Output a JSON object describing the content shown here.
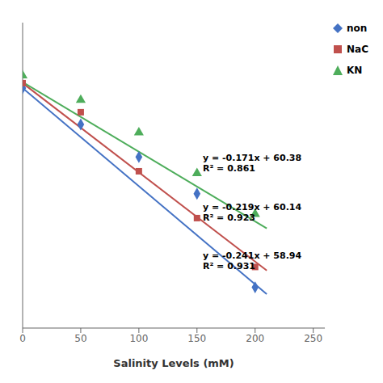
{
  "chart_data": {
    "type": "scatter",
    "xlabel": "Salinity Levels (mM)",
    "xlim": [
      0,
      260
    ],
    "ylim": [
      0,
      75
    ],
    "xticks": [
      0,
      50,
      100,
      150,
      200,
      250
    ],
    "tick_labels": "x",
    "grid": false,
    "legend": "upper right",
    "series": [
      {
        "name": "non",
        "color": "#4472C4",
        "marker": "diamond",
        "x": [
          0,
          50,
          100,
          150,
          200
        ],
        "values": [
          58.94,
          50.0,
          42.0,
          33.0,
          10.0
        ],
        "fit_x": [
          0,
          210
        ],
        "fit_y": [
          58.94,
          8.33
        ]
      },
      {
        "name": "NaC",
        "color": "#C0504D",
        "marker": "square",
        "x": [
          0,
          50,
          100,
          150,
          200
        ],
        "values": [
          60.14,
          53.0,
          38.5,
          27.0,
          15.0
        ],
        "fit_x": [
          0,
          210
        ],
        "fit_y": [
          60.14,
          14.15
        ]
      },
      {
        "name": "KN",
        "color": "#4EAD5B",
        "marker": "triangle",
        "x": [
          0,
          50,
          100,
          150,
          200
        ],
        "values": [
          62.0,
          56.0,
          48.0,
          38.0,
          28.0
        ],
        "fit_x": [
          0,
          210
        ],
        "fit_y": [
          60.38,
          24.47
        ]
      }
    ],
    "annotations": [
      {
        "text": "y = -0.171x + 60.38\nR² = 0.861",
        "x": 155,
        "y": 38
      },
      {
        "text": "y = -0.219x + 60.14\nR² = 0.923",
        "x": 155,
        "y": 26
      },
      {
        "text": "y = -0.241x + 58.94\nR² = 0.931",
        "x": 155,
        "y": 14
      }
    ]
  }
}
